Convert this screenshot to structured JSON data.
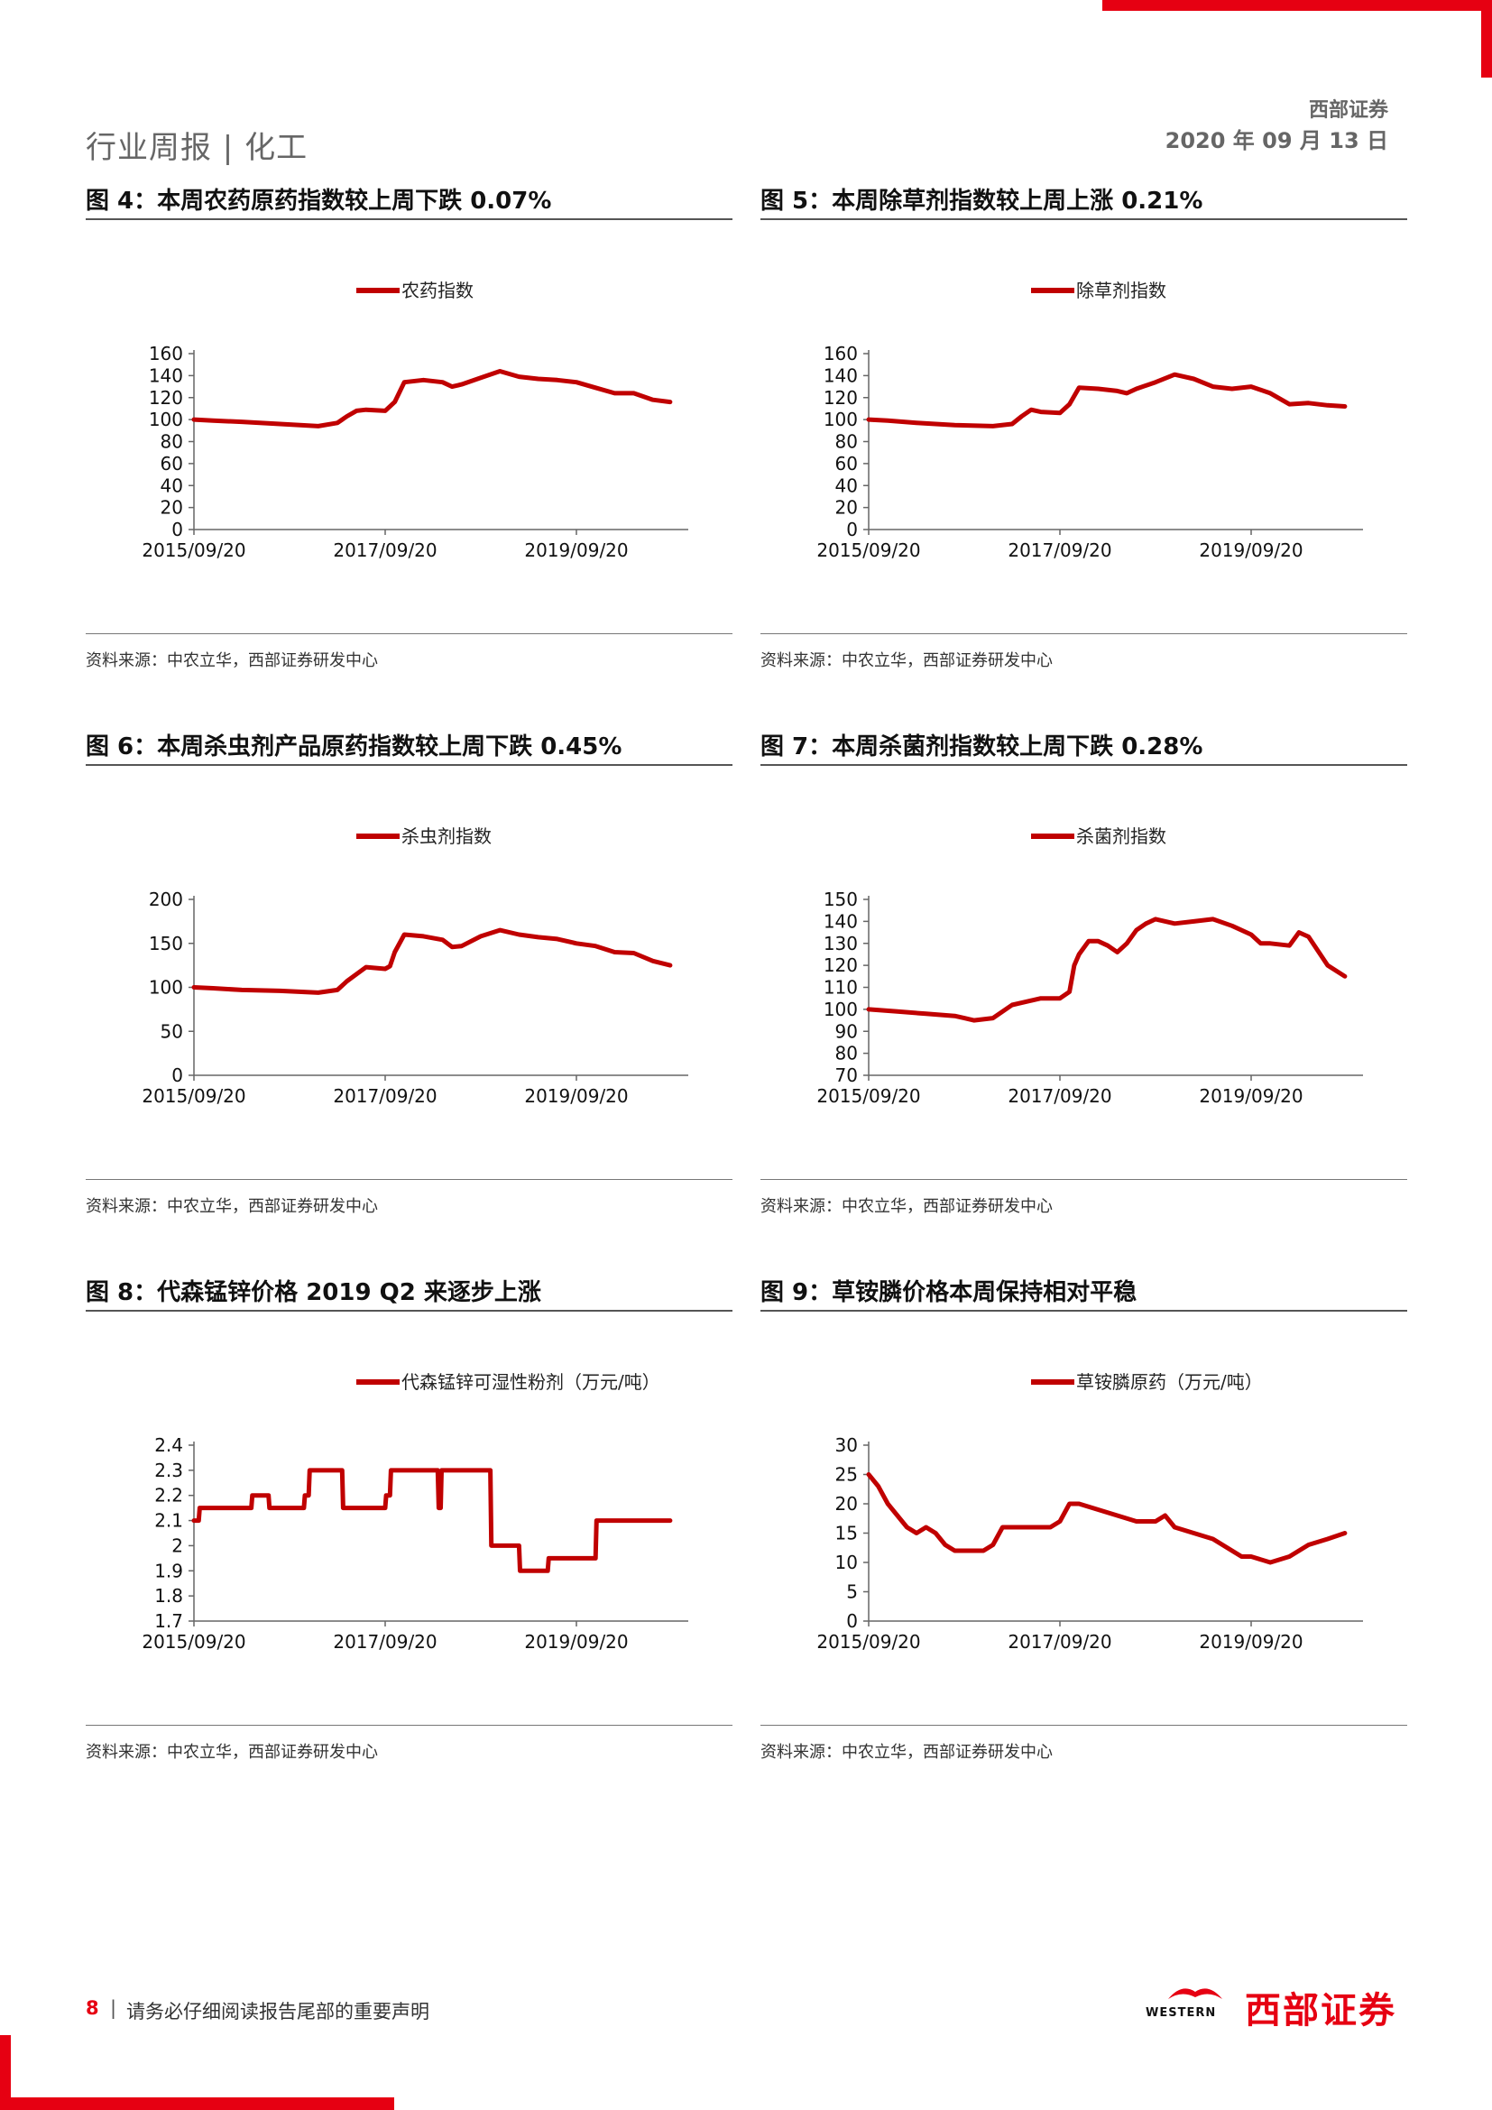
{
  "header": {
    "left": "行业周报 | 化工",
    "brand": "西部证券",
    "date": "2020 年 09 月 13 日"
  },
  "colors": {
    "accent": "#e60012",
    "series": "#c00000"
  },
  "source_text": "资料来源：中农立华，西部证券研发中心",
  "figures": [
    {
      "title": "图 4：本周农药原药指数较上周下跌 0.07%"
    },
    {
      "title": "图 5：本周除草剂指数较上周上涨 0.21%"
    },
    {
      "title": "图 6：本周杀虫剂产品原药指数较上周下跌 0.45%"
    },
    {
      "title": "图 7：本周杀菌剂指数较上周下跌 0.28%"
    },
    {
      "title": "图 8：代森锰锌价格 2019 Q2 来逐步上涨"
    },
    {
      "title": "图 9：草铵膦价格本周保持相对平稳"
    }
  ],
  "chart_data": [
    {
      "type": "line",
      "legend": "农药指数",
      "ylim": [
        0,
        160
      ],
      "yticks": [
        "0",
        "20",
        "40",
        "60",
        "80",
        "100",
        "120",
        "140",
        "160"
      ],
      "xlim": [
        0,
        5
      ],
      "xticks": [
        "2015/09/20",
        "2017/09/20",
        "2019/09/20"
      ],
      "xtick_pos": [
        0,
        2,
        4
      ],
      "x": [
        0,
        0.2,
        0.5,
        0.9,
        1.3,
        1.5,
        1.6,
        1.7,
        1.8,
        2.0,
        2.1,
        2.2,
        2.4,
        2.6,
        2.7,
        2.8,
        3.0,
        3.2,
        3.4,
        3.6,
        3.8,
        4.0,
        4.2,
        4.4,
        4.6,
        4.8,
        4.98
      ],
      "y": [
        100,
        99,
        98,
        96,
        94,
        97,
        103,
        108,
        109,
        108,
        116,
        134,
        136,
        134,
        130,
        132,
        138,
        144,
        139,
        137,
        136,
        134,
        129,
        124,
        124,
        118,
        116
      ]
    },
    {
      "type": "line",
      "legend": "除草剂指数",
      "ylim": [
        0,
        160
      ],
      "yticks": [
        "0",
        "20",
        "40",
        "60",
        "80",
        "100",
        "120",
        "140",
        "160"
      ],
      "xlim": [
        0,
        5
      ],
      "xticks": [
        "2015/09/20",
        "2017/09/20",
        "2019/09/20"
      ],
      "xtick_pos": [
        0,
        2,
        4
      ],
      "x": [
        0,
        0.2,
        0.5,
        0.9,
        1.3,
        1.5,
        1.6,
        1.7,
        1.8,
        2.0,
        2.1,
        2.2,
        2.4,
        2.6,
        2.7,
        2.8,
        3.0,
        3.2,
        3.4,
        3.6,
        3.8,
        4.0,
        4.2,
        4.4,
        4.6,
        4.8,
        4.98
      ],
      "y": [
        100,
        99,
        97,
        95,
        94,
        96,
        103,
        109,
        107,
        106,
        114,
        129,
        128,
        126,
        124,
        128,
        134,
        141,
        137,
        130,
        128,
        130,
        124,
        114,
        115,
        113,
        112
      ]
    },
    {
      "type": "line",
      "legend": "杀虫剂指数",
      "ylim": [
        0,
        200
      ],
      "yticks": [
        "0",
        "50",
        "100",
        "150",
        "200"
      ],
      "xlim": [
        0,
        5
      ],
      "xticks": [
        "2015/09/20",
        "2017/09/20",
        "2019/09/20"
      ],
      "xtick_pos": [
        0,
        2,
        4
      ],
      "x": [
        0,
        0.2,
        0.5,
        0.9,
        1.3,
        1.5,
        1.6,
        1.7,
        1.8,
        2.0,
        2.05,
        2.1,
        2.2,
        2.4,
        2.6,
        2.7,
        2.8,
        3.0,
        3.2,
        3.4,
        3.6,
        3.8,
        4.0,
        4.2,
        4.4,
        4.6,
        4.8,
        4.98
      ],
      "y": [
        100,
        99,
        97,
        96,
        94,
        97,
        107,
        115,
        123,
        121,
        124,
        140,
        160,
        158,
        154,
        146,
        147,
        158,
        165,
        160,
        157,
        155,
        150,
        147,
        140,
        139,
        130,
        125
      ]
    },
    {
      "type": "line",
      "legend": "杀菌剂指数",
      "ylim": [
        70,
        150
      ],
      "yticks": [
        "70",
        "80",
        "90",
        "100",
        "110",
        "120",
        "130",
        "140",
        "150"
      ],
      "xlim": [
        0,
        5
      ],
      "xticks": [
        "2015/09/20",
        "2017/09/20",
        "2019/09/20"
      ],
      "xtick_pos": [
        0,
        2,
        4
      ],
      "x": [
        0,
        0.3,
        0.6,
        0.9,
        1.0,
        1.1,
        1.3,
        1.5,
        1.6,
        1.8,
        2.0,
        2.1,
        2.15,
        2.2,
        2.3,
        2.4,
        2.5,
        2.6,
        2.7,
        2.8,
        2.9,
        3.0,
        3.2,
        3.4,
        3.6,
        3.8,
        4.0,
        4.1,
        4.2,
        4.4,
        4.5,
        4.6,
        4.8,
        4.98
      ],
      "y": [
        100,
        99,
        98,
        97,
        96,
        95,
        96,
        102,
        103,
        105,
        105,
        108,
        120,
        125,
        131,
        131,
        129,
        126,
        130,
        136,
        139,
        141,
        139,
        140,
        141,
        138,
        134,
        130,
        130,
        129,
        135,
        133,
        120,
        115
      ]
    },
    {
      "type": "line",
      "legend": "代森锰锌可湿性粉剂（万元/吨）",
      "ylim": [
        1.7,
        2.4
      ],
      "yticks": [
        "1.7",
        "1.8",
        "1.9",
        "2",
        "2.1",
        "2.2",
        "2.3",
        "2.4"
      ],
      "xlim": [
        0,
        5
      ],
      "xticks": [
        "2015/09/20",
        "2017/09/20",
        "2019/09/20"
      ],
      "xtick_pos": [
        0,
        2,
        4
      ],
      "x": [
        0,
        0.05,
        0.06,
        0.6,
        0.61,
        0.78,
        0.79,
        1.15,
        1.16,
        1.2,
        1.21,
        1.55,
        1.56,
        1.6,
        1.61,
        2.0,
        2.01,
        2.05,
        2.06,
        2.55,
        2.56,
        2.58,
        2.59,
        3.1,
        3.11,
        3.4,
        3.41,
        3.7,
        3.71,
        4.2,
        4.21,
        4.98
      ],
      "y": [
        2.1,
        2.1,
        2.15,
        2.15,
        2.2,
        2.2,
        2.15,
        2.15,
        2.2,
        2.2,
        2.3,
        2.3,
        2.15,
        2.15,
        2.15,
        2.15,
        2.2,
        2.2,
        2.3,
        2.3,
        2.15,
        2.15,
        2.3,
        2.3,
        2.0,
        2.0,
        1.9,
        1.9,
        1.95,
        1.95,
        2.1,
        2.1
      ]
    },
    {
      "type": "line",
      "legend": "草铵膦原药（万元/吨）",
      "ylim": [
        0,
        30
      ],
      "yticks": [
        "0",
        "5",
        "10",
        "15",
        "20",
        "25",
        "30"
      ],
      "xlim": [
        0,
        5
      ],
      "xticks": [
        "2015/09/20",
        "2017/09/20",
        "2019/09/20"
      ],
      "xtick_pos": [
        0,
        2,
        4
      ],
      "x": [
        0,
        0.1,
        0.2,
        0.3,
        0.4,
        0.5,
        0.6,
        0.7,
        0.8,
        0.9,
        1.0,
        1.1,
        1.2,
        1.3,
        1.4,
        1.5,
        1.7,
        1.9,
        2.0,
        2.1,
        2.2,
        2.4,
        2.6,
        2.8,
        3.0,
        3.1,
        3.2,
        3.4,
        3.6,
        3.8,
        3.9,
        4.0,
        4.2,
        4.4,
        4.6,
        4.8,
        4.98
      ],
      "y": [
        25,
        23,
        20,
        18,
        16,
        15,
        16,
        15,
        13,
        12,
        12,
        12,
        12,
        13,
        16,
        16,
        16,
        16,
        17,
        20,
        20,
        19,
        18,
        17,
        17,
        18,
        16,
        15,
        14,
        12,
        11,
        11,
        10,
        11,
        13,
        14,
        15
      ]
    }
  ],
  "footer": {
    "page": "8",
    "sep": "|",
    "notice": "请务必仔细阅读报告尾部的重要声明",
    "logo_en": "WESTERN",
    "logo_cn": "西部证券"
  }
}
